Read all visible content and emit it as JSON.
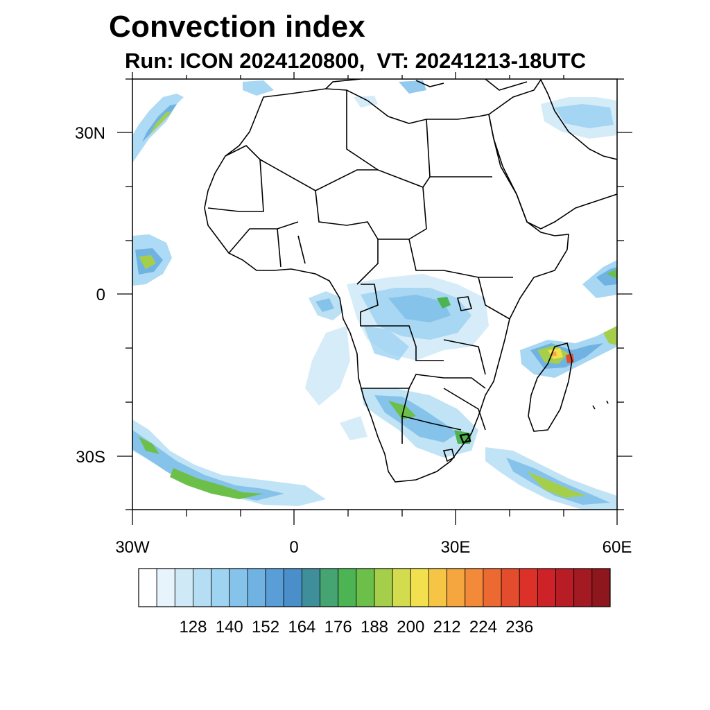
{
  "title": "Convection index",
  "subtitle": "Run: ICON 2024120800,  VT: 20241213-18UTC",
  "map": {
    "lon_range": [
      -30,
      60
    ],
    "lat_range": [
      -40,
      40
    ],
    "lat_ticks": [
      {
        "label": "30N"
      },
      {
        "label": "0"
      },
      {
        "label": "30S"
      }
    ],
    "lon_ticks": [
      {
        "label": "30W"
      },
      {
        "label": "0"
      },
      {
        "label": "30E"
      },
      {
        "label": "60E"
      }
    ]
  },
  "colorbar": {
    "labels": [
      "128",
      "140",
      "152",
      "164",
      "176",
      "188",
      "200",
      "212",
      "224",
      "236"
    ],
    "colors": [
      "#ffffff",
      "#e8f4fb",
      "#cfe9f7",
      "#b5def4",
      "#9fd3f2",
      "#86c3ea",
      "#70b2e2",
      "#5a9ed8",
      "#4a8fc9",
      "#3f8f9a",
      "#46a372",
      "#4db454",
      "#6cbf48",
      "#a5cf4a",
      "#d3dc4e",
      "#f3e04f",
      "#f7c546",
      "#f6a63e",
      "#f28a3a",
      "#ec6a32",
      "#e44c2e",
      "#dc3129",
      "#cc2228",
      "#b81d25",
      "#a41a22",
      "#8e171d"
    ]
  }
}
